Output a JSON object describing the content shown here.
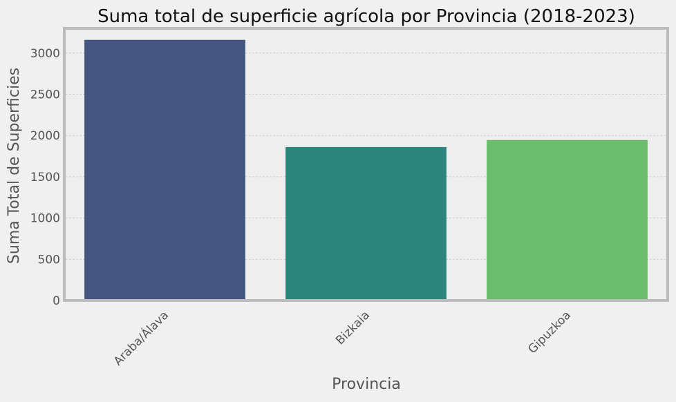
{
  "chart_data": {
    "type": "bar",
    "title": "Suma total de superficie agrícola por Provincia (2018-2023)",
    "xlabel": "Provincia",
    "ylabel": "Suma Total de Superficies",
    "categories": [
      "Araba/Álava",
      "Bizkaia",
      "Gipuzkoa"
    ],
    "values": [
      3160,
      1860,
      1945
    ],
    "colors": [
      "#44567f",
      "#2e857e",
      "#6bbd6e"
    ],
    "ylim": [
      0,
      3300
    ],
    "yticks": [
      0,
      500,
      1000,
      1500,
      2000,
      2500,
      3000
    ],
    "grid": true,
    "background": "#f0f0f0",
    "plot_background": "#eeeeee"
  }
}
